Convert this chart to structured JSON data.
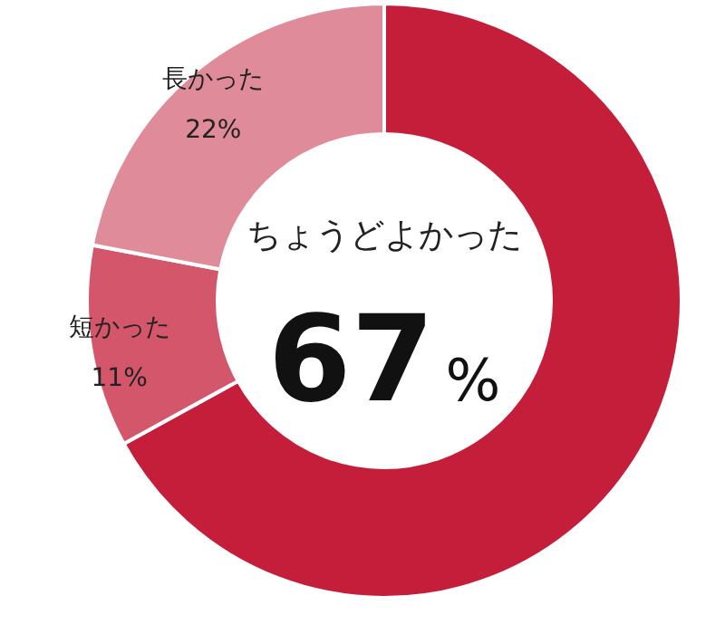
{
  "chart_data": {
    "type": "donut",
    "categories": [
      "ちょうどよかった",
      "短かった",
      "長かった"
    ],
    "values": [
      67,
      11,
      22
    ],
    "colors": [
      "#c41e3a",
      "#d4566b",
      "#e08b99"
    ],
    "value_labels": [
      "67%",
      "11%",
      "22%"
    ]
  }
}
